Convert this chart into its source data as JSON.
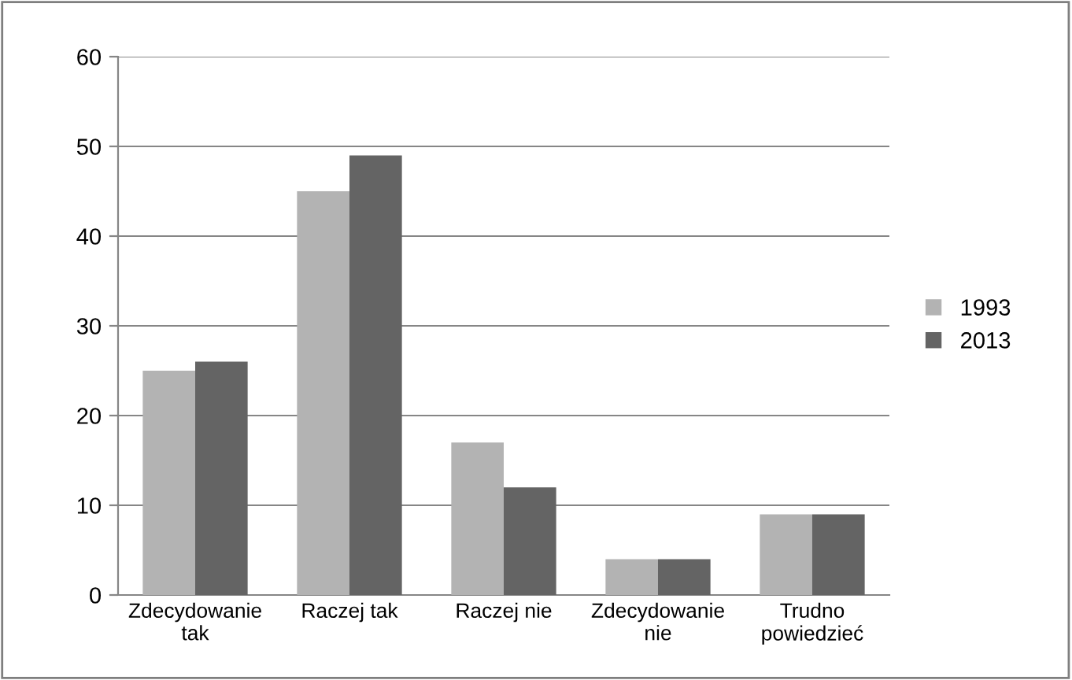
{
  "chart_data": {
    "type": "bar",
    "categories": [
      "Zdecydowanie\ntak",
      "Raczej tak",
      "Raczej nie",
      "Zdecydowanie\nnie",
      "Trudno\npowiedzieć"
    ],
    "series": [
      {
        "name": "1993",
        "color": "#b3b3b3",
        "values": [
          25,
          45,
          17,
          4,
          9
        ]
      },
      {
        "name": "2013",
        "color": "#646464",
        "values": [
          26,
          49,
          12,
          4,
          9
        ]
      }
    ],
    "ylim": [
      0,
      60
    ],
    "yticks": [
      0,
      10,
      20,
      30,
      40,
      50,
      60
    ],
    "grid": "y",
    "legend": "right"
  }
}
